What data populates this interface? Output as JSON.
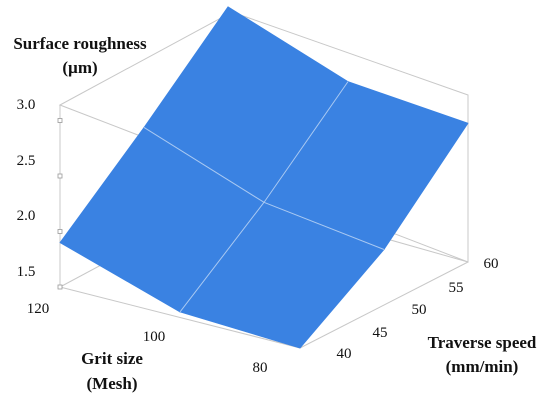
{
  "chart_data": {
    "type": "surface",
    "zlabel": [
      "Surface roughness",
      "(µm)"
    ],
    "xlabel": [
      "Grit size",
      "(Mesh)"
    ],
    "ylabel": [
      "Traverse speed",
      "(mm/min)"
    ],
    "x_ticks": [
      "120",
      "100",
      "80"
    ],
    "y_ticks": [
      "40",
      "45",
      "50",
      "55",
      "60"
    ],
    "z_ticks": [
      "3.0",
      "2.5",
      "2.0",
      "1.5"
    ],
    "grid_x": [
      120,
      100,
      80
    ],
    "grid_y": [
      40,
      50,
      60
    ],
    "z": [
      [
        1.9,
        2.55,
        3.25
      ],
      [
        1.55,
        2.15,
        2.85
      ],
      [
        1.5,
        2.0,
        2.75
      ]
    ],
    "surface_color": "#3a82e2"
  }
}
